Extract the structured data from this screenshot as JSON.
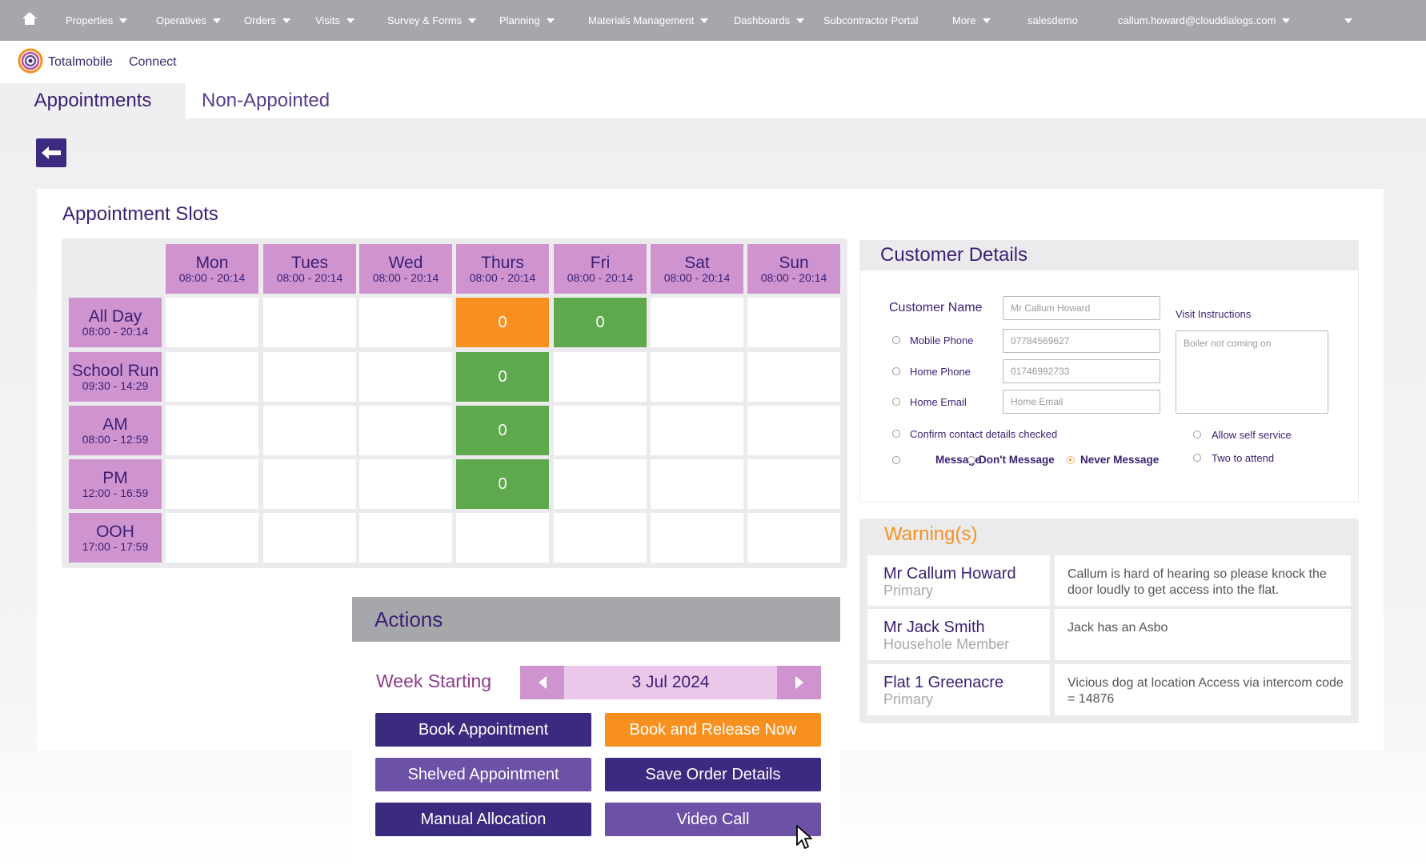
{
  "nav": {
    "items": [
      {
        "label": "Properties",
        "caret": true
      },
      {
        "label": "Operatives",
        "caret": true
      },
      {
        "label": "Orders",
        "caret": true
      },
      {
        "label": "Visits",
        "caret": true
      },
      {
        "label": "Survey & Forms",
        "caret": true
      },
      {
        "label": "Planning",
        "caret": true
      },
      {
        "label": "Materials Management",
        "caret": true
      },
      {
        "label": "Dashboards",
        "caret": true
      },
      {
        "label": "Subcontractor Portal",
        "caret": false
      },
      {
        "label": "More",
        "caret": true
      },
      {
        "label": "salesdemo",
        "caret": false
      },
      {
        "label": "callum.howard@clouddialogs.com",
        "caret": true
      }
    ],
    "home_icon": "home-icon"
  },
  "brand": {
    "logo": "Totalmobile",
    "product": "Connect"
  },
  "tabs": {
    "appointments": "Appointments",
    "non_appointed": "Non-Appointed"
  },
  "slots": {
    "title": "Appointment Slots",
    "days": [
      {
        "name": "Mon",
        "hours": "08:00 - 20:14"
      },
      {
        "name": "Tues",
        "hours": "08:00 - 20:14"
      },
      {
        "name": "Wed",
        "hours": "08:00 - 20:14"
      },
      {
        "name": "Thurs",
        "hours": "08:00 - 20:14"
      },
      {
        "name": "Fri",
        "hours": "08:00 - 20:14"
      },
      {
        "name": "Sat",
        "hours": "08:00 - 20:14"
      },
      {
        "name": "Sun",
        "hours": "08:00 - 20:14"
      }
    ],
    "rows": [
      {
        "name": "All Day",
        "hours": "08:00 - 20:14",
        "slots": {
          "3": {
            "value": "0",
            "color": "#f7901e"
          },
          "4": {
            "value": "0",
            "color": "#5ea84d"
          }
        }
      },
      {
        "name": "School Run",
        "hours": "09:30 - 14:29",
        "slots": {
          "3": {
            "value": "0",
            "color": "#5ea84d"
          }
        }
      },
      {
        "name": "AM",
        "hours": "08:00 - 12:59",
        "slots": {
          "3": {
            "value": "0",
            "color": "#5ea84d"
          }
        }
      },
      {
        "name": "PM",
        "hours": "12:00 - 16:59",
        "slots": {
          "3": {
            "value": "0",
            "color": "#5ea84d"
          }
        }
      },
      {
        "name": "OOH",
        "hours": "17:00 - 17:59",
        "slots": {}
      }
    ]
  },
  "customer": {
    "title": "Customer Details",
    "name_label": "Customer Name",
    "name_placeholder": "Mr Callum Howard",
    "mobile_label": "Mobile Phone",
    "mobile_placeholder": "07784569627",
    "home_phone_label": "Home Phone",
    "home_phone_placeholder": "01746992733",
    "email_label": "Home Email",
    "email_placeholder": "Home Email",
    "visit_instructions_label": "Visit Instructions",
    "visit_instructions_placeholder": "Boiler not coming on",
    "confirm_label": "Confirm contact details checked",
    "allow_self_service": "Allow self service",
    "two_to_attend": "Two to attend",
    "message": "Message",
    "dont_message": "Don't Message",
    "never_message": "Never Message",
    "message_selected": "Never Message"
  },
  "warnings": {
    "title": "Warning(s)",
    "items": [
      {
        "name": "Mr Callum Howard",
        "role": "Primary",
        "text": "Callum is hard of hearing so please knock the door loudly to get access into the flat."
      },
      {
        "name": "Mr Jack Smith",
        "role": "Househole Member",
        "text": "Jack has an Asbo"
      },
      {
        "name": "Flat 1 Greenacre",
        "role": "Primary",
        "text": "Vicious dog at location Access via intercom code = 14876"
      }
    ]
  },
  "actions": {
    "title": "Actions",
    "week_label": "Week Starting",
    "week_value": "3 Jul 2024",
    "buttons": {
      "book": "Book Appointment",
      "book_release": "Book and Release Now",
      "shelved": "Shelved Appointment",
      "save_order": "Save Order Details",
      "manual": "Manual Allocation",
      "video": "Video Call"
    }
  }
}
